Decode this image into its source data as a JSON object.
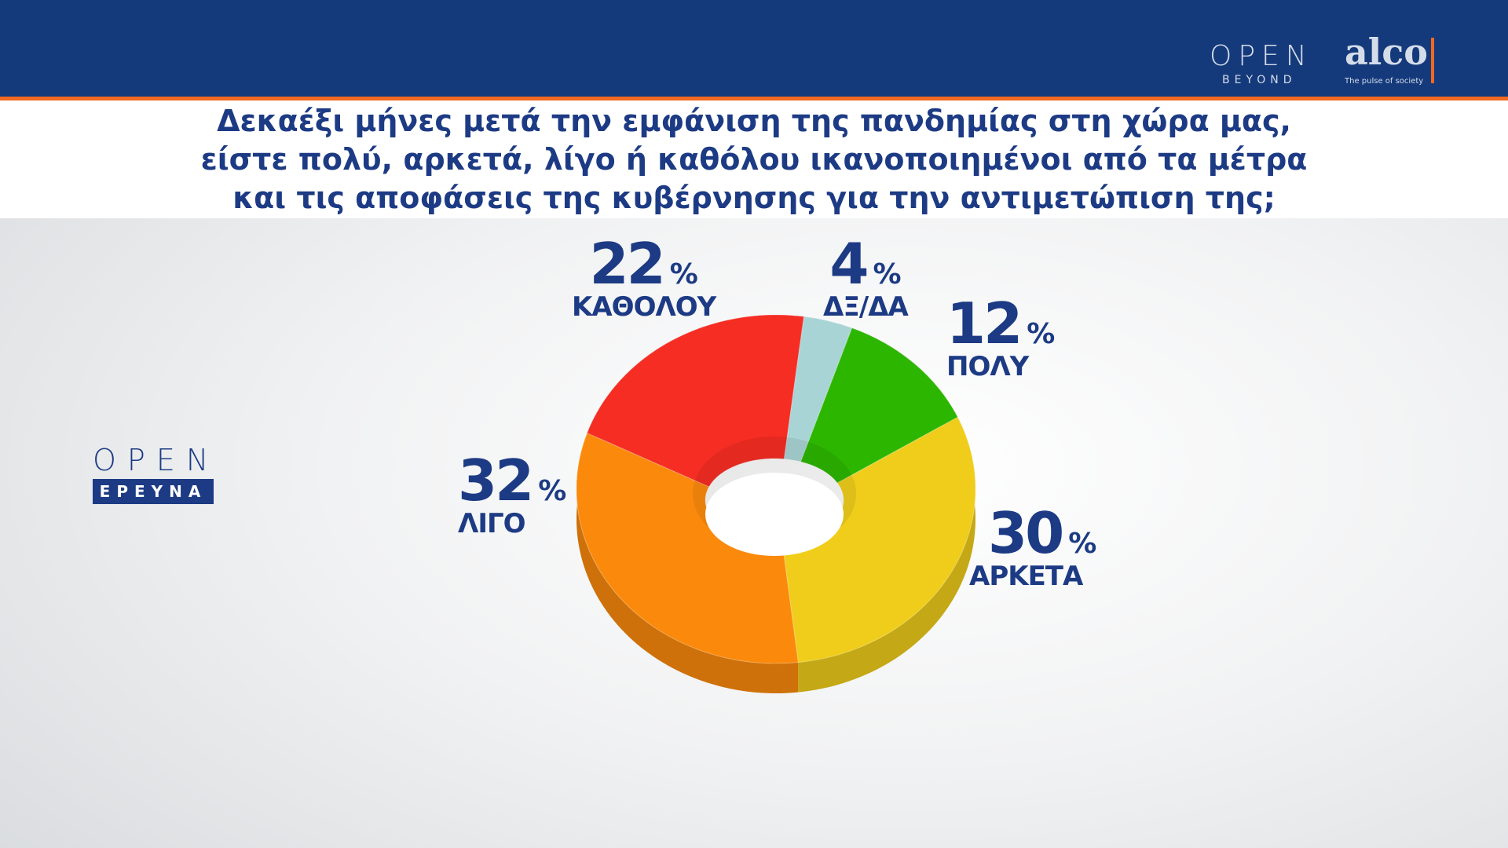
{
  "header": {
    "logo_open": "OPEN",
    "logo_beyond": "BEYOND",
    "logo_alco": "alco",
    "logo_alco_tagline": "The pulse of society"
  },
  "title_lines": [
    "Δεκαέξι μήνες μετά την εμφάνιση της πανδημίας στη χώρα μας,",
    "είστε πολύ, αρκετά, λίγο ή καθόλου ικανοποιημένοι από τα μέτρα",
    "και τις αποφάσεις της κυβέρνησης για την αντιμετώπιση της;"
  ],
  "side_logo": {
    "open": "OPEN",
    "ereuna": "ΕΡΕΥΝΑ"
  },
  "chart_data": {
    "type": "pie",
    "style": "3d-donut",
    "categories": [
      "ΔΞ/ΔΑ",
      "ΠΟΛΥ",
      "ΑΡΚΕΤΑ",
      "ΛΙΓΟ",
      "ΚΑΘΟΛΟΥ"
    ],
    "values": [
      4,
      12,
      30,
      32,
      22
    ],
    "unit": "%",
    "colors": [
      "#a9d4d6",
      "#2db600",
      "#efcd1a",
      "#fb8a0c",
      "#f52d23"
    ],
    "labels": [
      {
        "value": "4",
        "pct": "%",
        "name": "ΔΞ/ΔΑ"
      },
      {
        "value": "12",
        "pct": "%",
        "name": "ΠΟΛΥ"
      },
      {
        "value": "30",
        "pct": "%",
        "name": "ΑΡΚΕΤΑ"
      },
      {
        "value": "32",
        "pct": "%",
        "name": "ΛΙΓΟ"
      },
      {
        "value": "22",
        "pct": "%",
        "name": "ΚΑΘΟΛΟΥ"
      }
    ]
  }
}
